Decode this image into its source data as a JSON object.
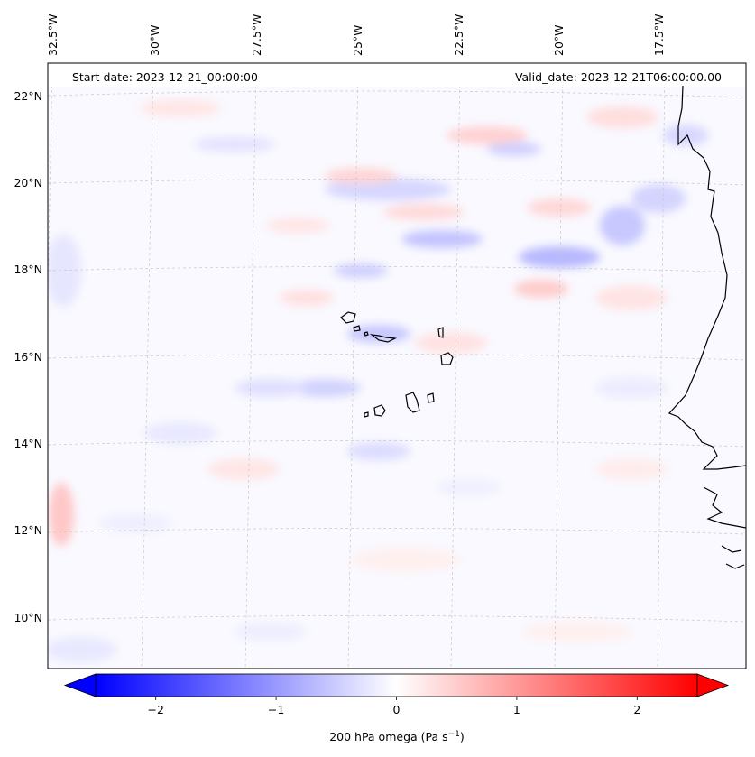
{
  "map": {
    "header_left": "Start date: 2023-12-21_00:00:00",
    "header_right": "Valid_date: 2023-12-21T06:00:00.00",
    "lon_labels": [
      "32.5°W",
      "30°W",
      "27.5°W",
      "25°W",
      "22.5°W",
      "20°W",
      "17.5°W"
    ],
    "lat_labels": [
      "22°N",
      "20°N",
      "18°N",
      "16°N",
      "14°N",
      "12°N",
      "10°N"
    ],
    "field_variable": "200 hPa omega",
    "gridlines": true,
    "coastlines": true
  },
  "colorbar": {
    "label_prefix": "200 hPa omega (Pa s",
    "label_exp": "−1",
    "label_suffix": ")",
    "tick_labels": [
      "−2",
      "−1",
      "0",
      "1",
      "2"
    ],
    "tick_values": [
      -2,
      -1,
      0,
      1,
      2
    ],
    "range": [
      -2.5,
      2.5
    ],
    "extend": "both",
    "cmap": "bwr",
    "colors": {
      "neg": "#0000ff",
      "zero": "#ffffff",
      "pos": "#ff0000"
    }
  }
}
